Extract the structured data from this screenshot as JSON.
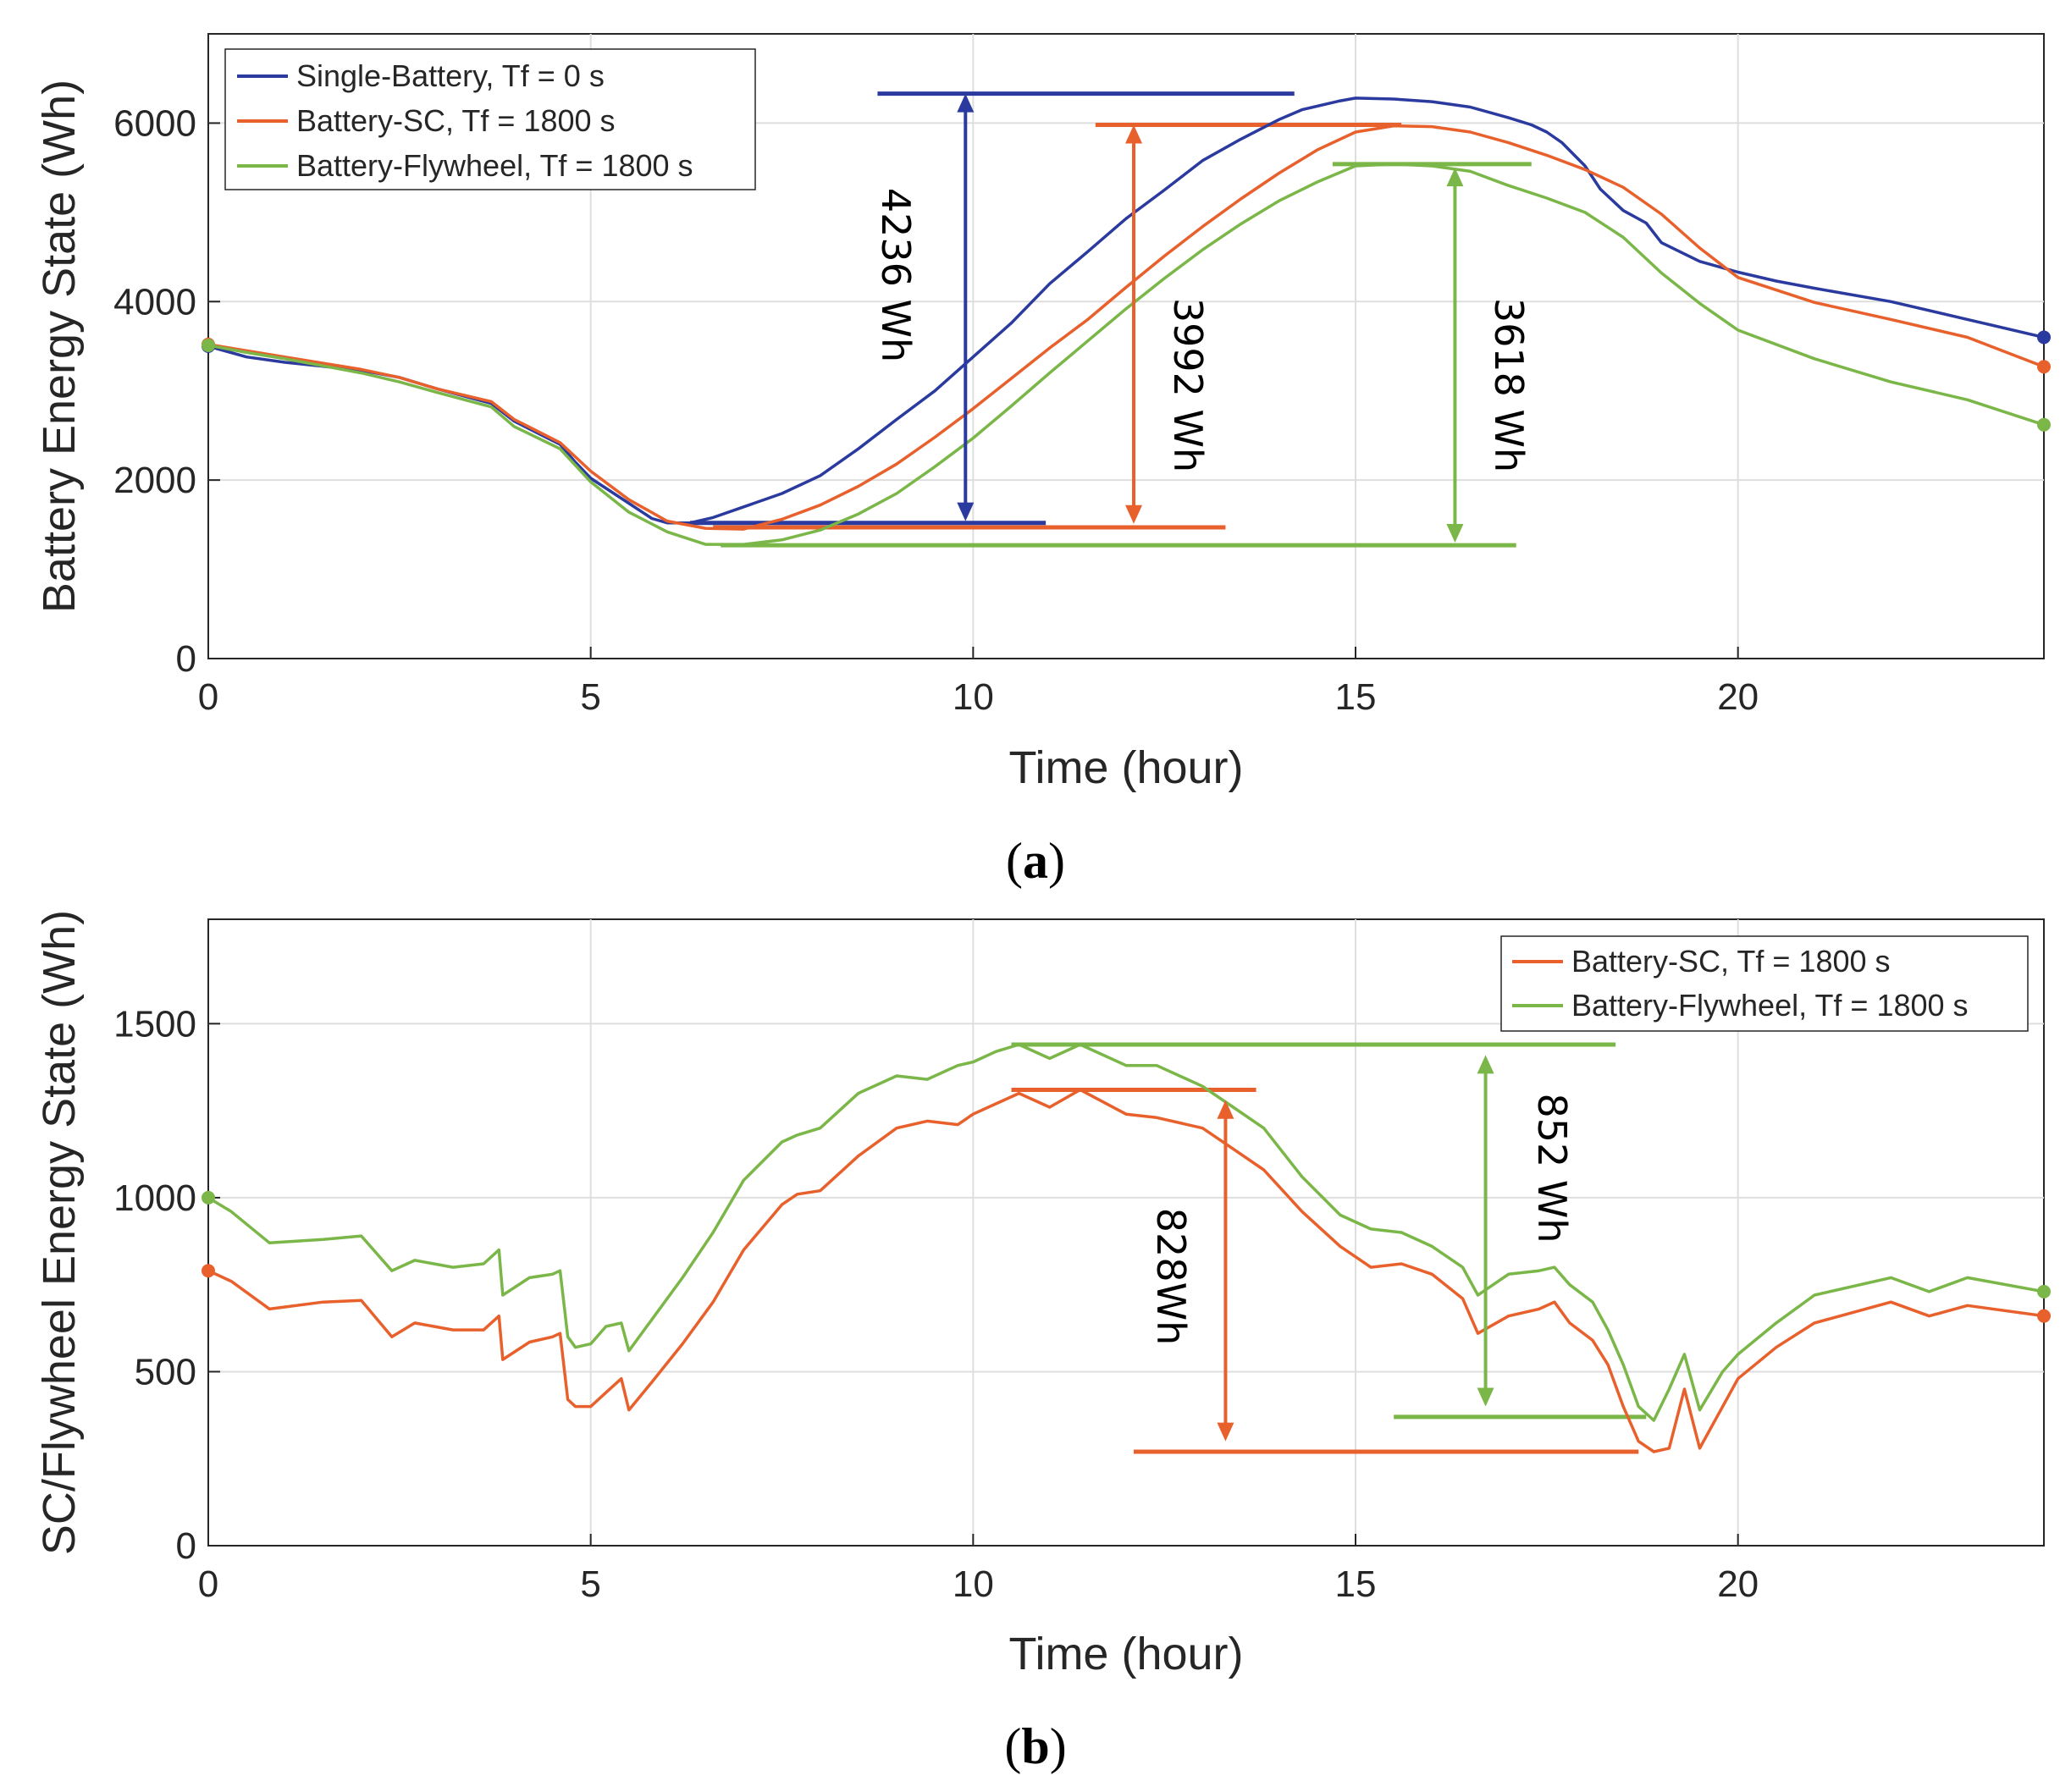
{
  "charts": [
    {
      "caption": {
        "open": "(",
        "letter": "a",
        "close": ")"
      },
      "chart_data": {
        "type": "line",
        "xlabel": "Time (hour)",
        "ylabel": "Battery Energy State (Wh)",
        "xlim": [
          0,
          24
        ],
        "ylim": [
          0,
          7000
        ],
        "xticks": [
          0,
          5,
          10,
          15,
          20
        ],
        "yticks": [
          0,
          2000,
          4000,
          6000
        ],
        "grid": true,
        "legend_position": "top-left",
        "series": [
          {
            "name": "Single-Battery, Tf = 0 s",
            "color": "#2b3a9e",
            "x": [
              0,
              0.5,
              1,
              2,
              2.5,
              3,
              3.7,
              4,
              4.6,
              4.8,
              5,
              5.5,
              5.8,
              6,
              6.3,
              6.6,
              7,
              7.5,
              8,
              8.5,
              9,
              9.5,
              10,
              10.5,
              11,
              11.5,
              12,
              12.5,
              13,
              13.5,
              14,
              14.3,
              14.8,
              15,
              15.5,
              16,
              16.5,
              17,
              17.3,
              17.5,
              17.7,
              18,
              18.2,
              18.5,
              18.8,
              19,
              19.5,
              20,
              20.5,
              21,
              22,
              23,
              24
            ],
            "y": [
              3500,
              3380,
              3320,
              3230,
              3150,
              3020,
              2860,
              2660,
              2400,
              2200,
              2020,
              1740,
              1570,
              1520,
              1520,
              1580,
              1700,
              1850,
              2050,
              2350,
              2680,
              3000,
              3380,
              3760,
              4200,
              4560,
              4930,
              5250,
              5580,
              5820,
              6040,
              6150,
              6250,
              6280,
              6270,
              6240,
              6180,
              6060,
              5980,
              5900,
              5780,
              5520,
              5260,
              5020,
              4880,
              4660,
              4450,
              4330,
              4230,
              4150,
              4000,
              3800,
              3600
            ]
          },
          {
            "name": "Battery-SC, Tf = 1800 s",
            "color": "#e8602c",
            "x": [
              0,
              0.5,
              1,
              2,
              2.5,
              3,
              3.7,
              4,
              4.6,
              5,
              5.5,
              6,
              6.5,
              7,
              7.5,
              8,
              8.5,
              9,
              9.5,
              10,
              10.5,
              11,
              11.5,
              12,
              12.5,
              13,
              13.5,
              14,
              14.5,
              15,
              15.5,
              16,
              16.5,
              17,
              17.5,
              18,
              18.5,
              19,
              19.5,
              20,
              21,
              22,
              23,
              24
            ],
            "y": [
              3520,
              3450,
              3380,
              3240,
              3150,
              3020,
              2880,
              2680,
              2420,
              2100,
              1780,
              1540,
              1460,
              1450,
              1560,
              1720,
              1930,
              2180,
              2480,
              2800,
              3140,
              3480,
              3800,
              4160,
              4510,
              4840,
              5150,
              5440,
              5700,
              5900,
              5970,
              5960,
              5900,
              5780,
              5640,
              5480,
              5280,
              4980,
              4600,
              4270,
              3990,
              3800,
              3600,
              3270
            ]
          },
          {
            "name": "Battery-Flywheel, Tf = 1800 s",
            "color": "#7ab648",
            "x": [
              0,
              0.5,
              1,
              2,
              2.5,
              3,
              3.7,
              4,
              4.6,
              5,
              5.5,
              6,
              6.5,
              7,
              7.5,
              8,
              8.5,
              9,
              9.5,
              10,
              10.5,
              11,
              11.5,
              12,
              12.5,
              13,
              13.5,
              14,
              14.5,
              15,
              15.5,
              16,
              16.5,
              17,
              17.5,
              18,
              18.5,
              19,
              19.5,
              20,
              21,
              22,
              23,
              24
            ],
            "y": [
              3510,
              3430,
              3360,
              3200,
              3100,
              2980,
              2820,
              2600,
              2350,
              1980,
              1640,
              1420,
              1280,
              1280,
              1330,
              1440,
              1620,
              1850,
              2150,
              2470,
              2830,
              3200,
              3560,
              3920,
              4260,
              4580,
              4870,
              5130,
              5340,
              5520,
              5540,
              5520,
              5460,
              5300,
              5160,
              5000,
              4720,
              4320,
              3980,
              3680,
              3360,
              3100,
              2900,
              2620
            ]
          }
        ],
        "end_markers": true,
        "annotations": [
          {
            "label": "4236 Wh",
            "color": "#2b3a9e",
            "arrow_x": 9.9,
            "y_from": 1540,
            "y_to": 6330,
            "top_line": [
              8.75,
              14.2,
              6330
            ],
            "bottom_line": [
              6.3,
              10.95,
              1520
            ],
            "label_x": 9.2,
            "label_y": 4800
          },
          {
            "label": "3992 Wh",
            "color": "#e8602c",
            "arrow_x": 12.1,
            "y_from": 1510,
            "y_to": 5980,
            "top_line": [
              11.6,
              15.6,
              5980
            ],
            "bottom_line": [
              6.6,
              13.3,
              1470
            ],
            "label_x": 12.8,
            "label_y": 3500
          },
          {
            "label": "3618 Wh",
            "color": "#7ab648",
            "arrow_x": 16.3,
            "y_from": 1300,
            "y_to": 5500,
            "top_line": [
              14.7,
              17.3,
              5540
            ],
            "bottom_line": [
              6.7,
              17.1,
              1270
            ],
            "label_x": 17.0,
            "label_y": 3500
          }
        ]
      }
    },
    {
      "caption": {
        "open": "(",
        "letter": "b",
        "close": ")"
      },
      "chart_data": {
        "type": "line",
        "xlabel": "Time (hour)",
        "ylabel": "SC/Flywheel Energy State (Wh)",
        "xlim": [
          0,
          24
        ],
        "ylim": [
          0,
          1800
        ],
        "xticks": [
          0,
          5,
          10,
          15,
          20
        ],
        "yticks": [
          0,
          500,
          1000,
          1500
        ],
        "grid": true,
        "legend_position": "top-right",
        "series": [
          {
            "name": "Battery-SC, Tf = 1800 s",
            "color": "#e8602c",
            "x": [
              0,
              0.3,
              0.8,
              1.5,
              2,
              2.4,
              2.7,
              3.2,
              3.6,
              3.8,
              3.85,
              4.2,
              4.5,
              4.6,
              4.7,
              4.8,
              5.0,
              5.2,
              5.4,
              5.5,
              5.8,
              6.2,
              6.6,
              7.0,
              7.5,
              7.7,
              8,
              8.5,
              9,
              9.4,
              9.8,
              10.0,
              10.3,
              10.6,
              11.0,
              11.4,
              12.0,
              12.4,
              13.0,
              13.4,
              13.8,
              14.3,
              14.8,
              15.2,
              15.6,
              16.0,
              16.4,
              16.6,
              17.0,
              17.4,
              17.6,
              17.8,
              18.1,
              18.3,
              18.5,
              18.7,
              18.9,
              19.1,
              19.3,
              19.5,
              19.8,
              20.0,
              20.5,
              21,
              22,
              22.5,
              23,
              24
            ],
            "y": [
              790,
              760,
              680,
              700,
              705,
              600,
              640,
              620,
              620,
              660,
              535,
              585,
              600,
              610,
              420,
              400,
              400,
              440,
              480,
              390,
              470,
              580,
              700,
              850,
              980,
              1010,
              1020,
              1120,
              1200,
              1220,
              1210,
              1240,
              1270,
              1300,
              1260,
              1310,
              1240,
              1230,
              1200,
              1140,
              1080,
              960,
              860,
              800,
              810,
              780,
              710,
              610,
              660,
              680,
              700,
              640,
              590,
              520,
              400,
              300,
              270,
              280,
              450,
              280,
              400,
              480,
              570,
              640,
              700,
              660,
              690,
              660
            ]
          },
          {
            "name": "Battery-Flywheel, Tf = 1800 s",
            "color": "#7ab648",
            "x": [
              0,
              0.3,
              0.8,
              1.5,
              2,
              2.4,
              2.7,
              3.2,
              3.6,
              3.8,
              3.85,
              4.2,
              4.5,
              4.6,
              4.7,
              4.8,
              5.0,
              5.2,
              5.4,
              5.5,
              5.8,
              6.2,
              6.6,
              7.0,
              7.5,
              7.7,
              8,
              8.5,
              9,
              9.4,
              9.8,
              10.0,
              10.3,
              10.6,
              11.0,
              11.4,
              12.0,
              12.4,
              13.0,
              13.4,
              13.8,
              14.3,
              14.8,
              15.2,
              15.6,
              16.0,
              16.4,
              16.6,
              17.0,
              17.4,
              17.6,
              17.8,
              18.1,
              18.3,
              18.5,
              18.7,
              18.9,
              19.1,
              19.3,
              19.5,
              19.8,
              20.0,
              20.5,
              21,
              22,
              22.5,
              23,
              24
            ],
            "y": [
              1000,
              960,
              870,
              880,
              890,
              790,
              820,
              800,
              810,
              850,
              720,
              770,
              780,
              790,
              600,
              570,
              580,
              630,
              640,
              560,
              650,
              770,
              900,
              1050,
              1160,
              1180,
              1200,
              1300,
              1350,
              1340,
              1380,
              1390,
              1420,
              1440,
              1400,
              1440,
              1380,
              1380,
              1320,
              1260,
              1200,
              1060,
              950,
              910,
              900,
              860,
              800,
              720,
              780,
              790,
              800,
              750,
              700,
              620,
              520,
              400,
              360,
              450,
              550,
              390,
              500,
              550,
              640,
              720,
              770,
              730,
              770,
              730
            ]
          }
        ],
        "end_markers": true,
        "annotations": [
          {
            "label": "828Wh",
            "color": "#e8602c",
            "arrow_x": 13.3,
            "y_from": 300,
            "y_to": 1280,
            "top_line": [
              10.5,
              13.7,
              1310
            ],
            "bottom_line": [
              12.1,
              18.7,
              270
            ],
            "label_x": 12.5,
            "label_y": 760
          },
          {
            "label": "852 Wh",
            "color": "#7ab648",
            "arrow_x": 16.7,
            "y_from": 400,
            "y_to": 1410,
            "top_line": [
              10.5,
              18.4,
              1440
            ],
            "bottom_line": [
              15.5,
              18.8,
              370
            ],
            "label_x": 17.5,
            "label_y": 1070
          }
        ]
      }
    }
  ]
}
